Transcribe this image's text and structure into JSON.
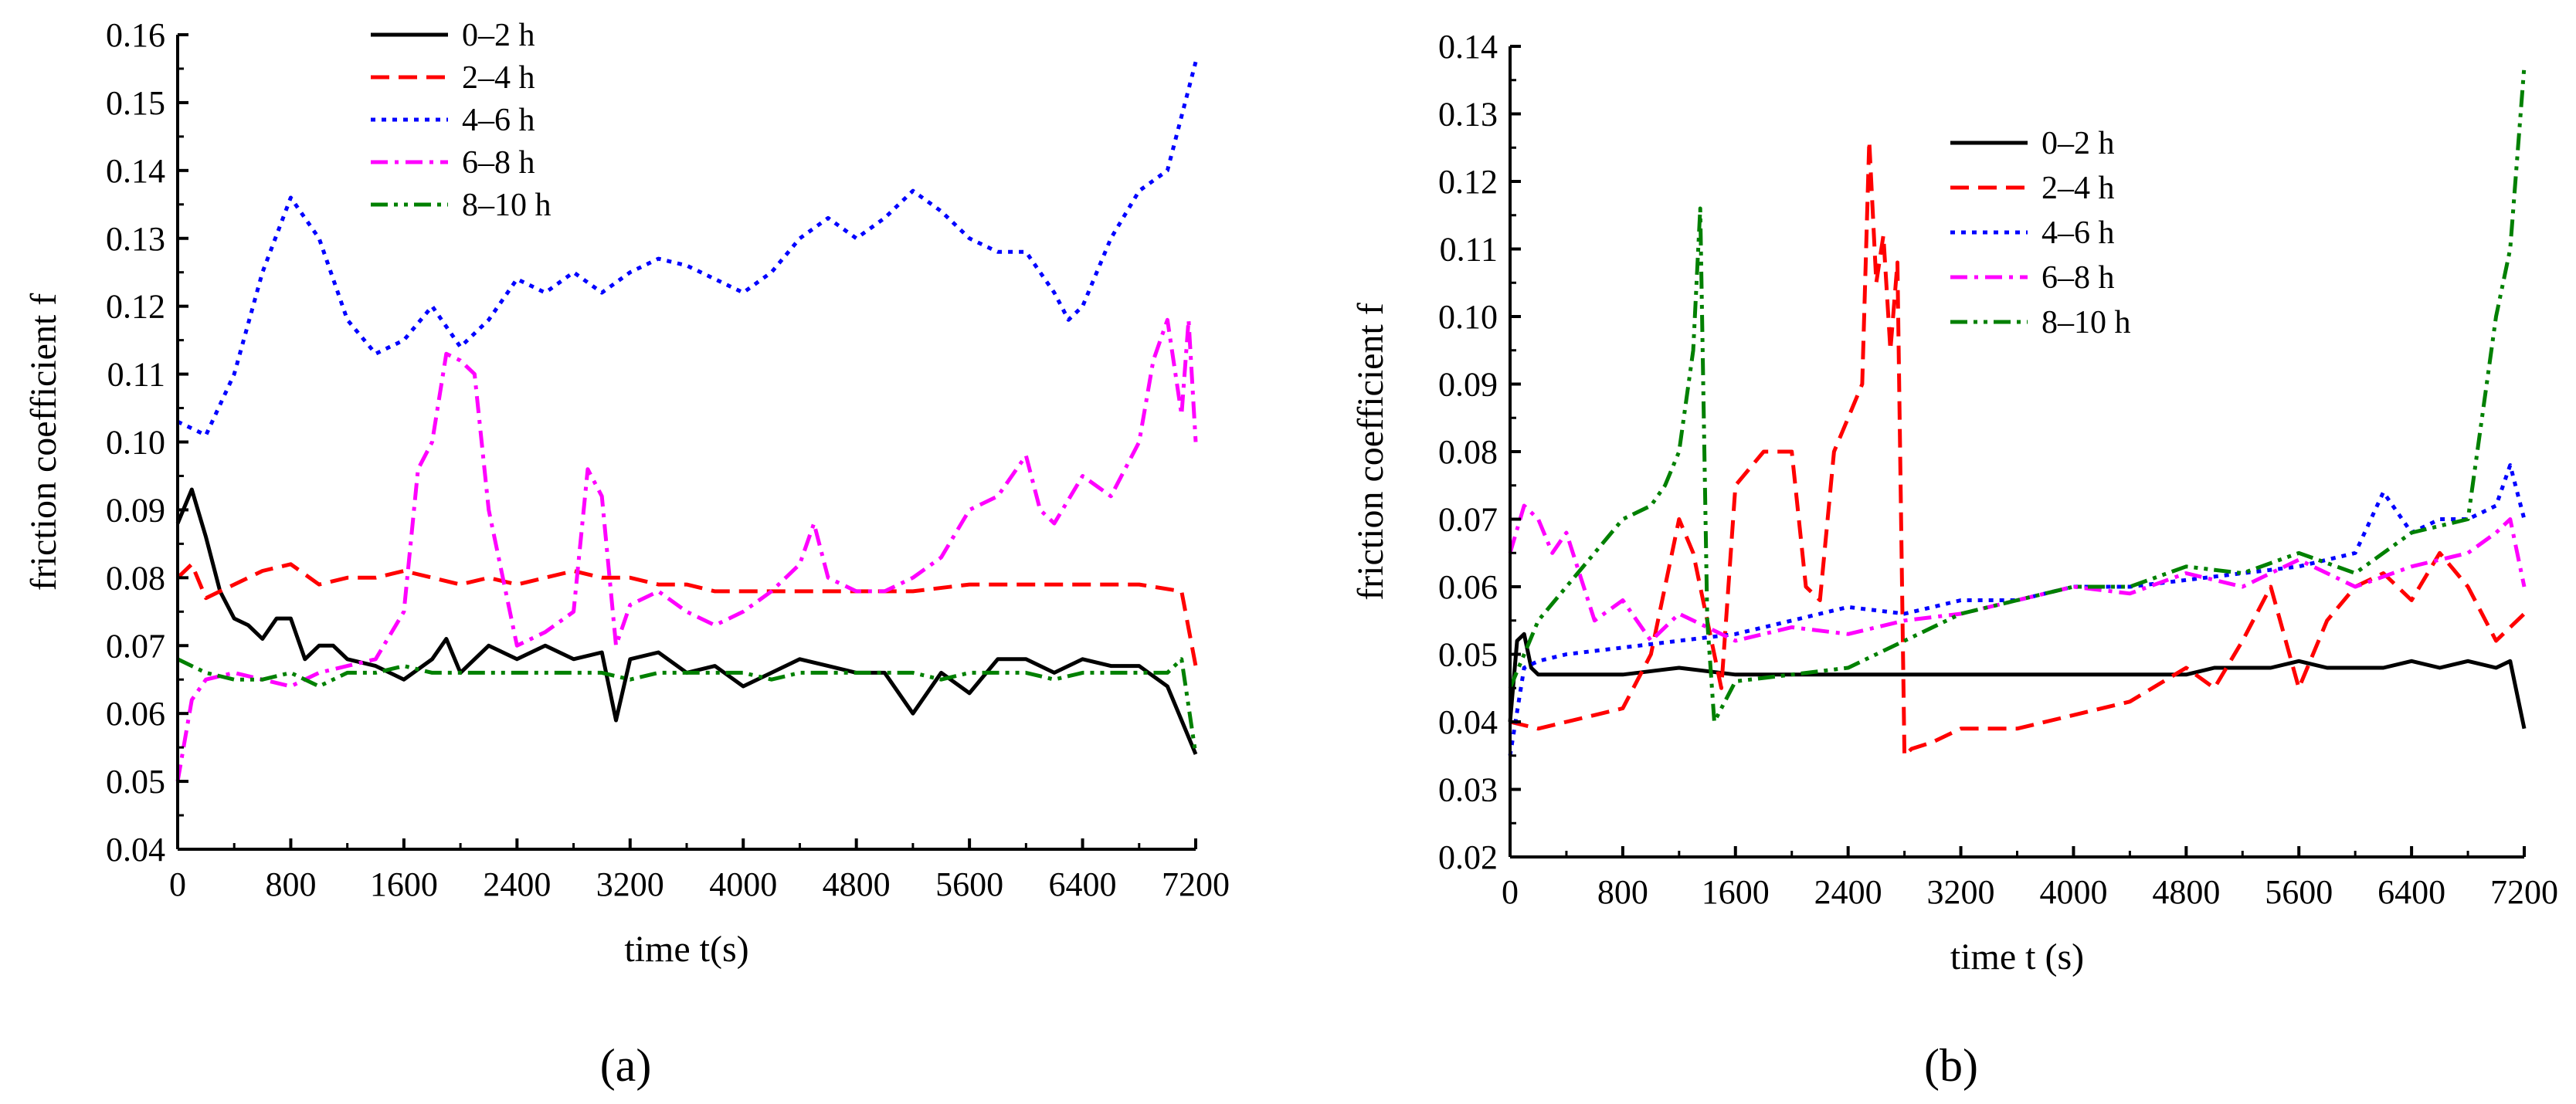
{
  "panel_labels": [
    "(a)",
    "(b)"
  ],
  "chart_data": [
    {
      "type": "line",
      "panel": "(a)",
      "title": "",
      "xlabel": "time t(s)",
      "ylabel": "friction coefficient f",
      "xlim": [
        0,
        7200
      ],
      "ylim": [
        0.04,
        0.16
      ],
      "xticks": [
        0,
        800,
        1600,
        2400,
        3200,
        4000,
        4800,
        5600,
        6400,
        7200
      ],
      "yticks": [
        0.04,
        0.05,
        0.06,
        0.07,
        0.08,
        0.09,
        0.1,
        0.11,
        0.12,
        0.13,
        0.14,
        0.15,
        0.16
      ],
      "ytick_labels": [
        "0.04",
        "0.05",
        "0.06",
        "0.07",
        "0.08",
        "0.09",
        "0.10",
        "0.11",
        "0.12",
        "0.13",
        "0.14",
        "0.15",
        "0.16"
      ],
      "legend_position": "top-left",
      "series": [
        {
          "name": "0–2 h",
          "color": "#000000",
          "dash": "solid",
          "x": [
            0,
            100,
            200,
            300,
            400,
            500,
            600,
            700,
            800,
            900,
            1000,
            1100,
            1200,
            1400,
            1600,
            1800,
            1900,
            2000,
            2200,
            2400,
            2600,
            2800,
            3000,
            3100,
            3200,
            3400,
            3600,
            3800,
            4000,
            4200,
            4400,
            4600,
            4800,
            5000,
            5200,
            5400,
            5600,
            5800,
            6000,
            6200,
            6400,
            6600,
            6800,
            7000,
            7200
          ],
          "values": [
            0.088,
            0.093,
            0.086,
            0.078,
            0.074,
            0.073,
            0.071,
            0.074,
            0.074,
            0.068,
            0.07,
            0.07,
            0.068,
            0.067,
            0.065,
            0.068,
            0.071,
            0.066,
            0.07,
            0.068,
            0.07,
            0.068,
            0.069,
            0.059,
            0.068,
            0.069,
            0.066,
            0.067,
            0.064,
            0.066,
            0.068,
            0.067,
            0.066,
            0.066,
            0.06,
            0.066,
            0.063,
            0.068,
            0.068,
            0.066,
            0.068,
            0.067,
            0.067,
            0.064,
            0.054
          ]
        },
        {
          "name": "2–4 h",
          "color": "#ff0000",
          "dash": "dashed",
          "x": [
            0,
            100,
            200,
            400,
            600,
            800,
            1000,
            1200,
            1400,
            1600,
            1800,
            2000,
            2200,
            2400,
            2600,
            2800,
            3000,
            3200,
            3400,
            3600,
            3800,
            4000,
            4400,
            4800,
            5200,
            5600,
            6000,
            6400,
            6800,
            7100,
            7200
          ],
          "values": [
            0.08,
            0.082,
            0.077,
            0.079,
            0.081,
            0.082,
            0.079,
            0.08,
            0.08,
            0.081,
            0.08,
            0.079,
            0.08,
            0.079,
            0.08,
            0.081,
            0.08,
            0.08,
            0.079,
            0.079,
            0.078,
            0.078,
            0.078,
            0.078,
            0.078,
            0.079,
            0.079,
            0.079,
            0.079,
            0.078,
            0.067
          ]
        },
        {
          "name": "4–6 h",
          "color": "#0000ff",
          "dash": "dotted",
          "x": [
            0,
            200,
            400,
            600,
            800,
            1000,
            1200,
            1400,
            1600,
            1800,
            2000,
            2200,
            2400,
            2600,
            2800,
            3000,
            3200,
            3400,
            3600,
            3800,
            4000,
            4200,
            4400,
            4600,
            4800,
            5000,
            5200,
            5400,
            5600,
            5800,
            6000,
            6200,
            6300,
            6400,
            6600,
            6800,
            7000,
            7200
          ],
          "values": [
            0.103,
            0.101,
            0.11,
            0.125,
            0.136,
            0.13,
            0.118,
            0.113,
            0.115,
            0.12,
            0.114,
            0.118,
            0.124,
            0.122,
            0.125,
            0.122,
            0.125,
            0.127,
            0.126,
            0.124,
            0.122,
            0.125,
            0.13,
            0.133,
            0.13,
            0.133,
            0.137,
            0.134,
            0.13,
            0.128,
            0.128,
            0.122,
            0.118,
            0.12,
            0.13,
            0.137,
            0.14,
            0.156
          ]
        },
        {
          "name": "6–8 h",
          "color": "#ff00ff",
          "dash": "dashdot",
          "x": [
            0,
            100,
            200,
            400,
            600,
            800,
            1000,
            1200,
            1400,
            1600,
            1700,
            1800,
            1900,
            2000,
            2100,
            2200,
            2400,
            2600,
            2800,
            2900,
            3000,
            3100,
            3200,
            3400,
            3600,
            3800,
            4000,
            4200,
            4400,
            4500,
            4600,
            4800,
            5000,
            5200,
            5400,
            5600,
            5800,
            6000,
            6100,
            6200,
            6400,
            6600,
            6800,
            6900,
            7000,
            7100,
            7150,
            7200
          ],
          "values": [
            0.05,
            0.062,
            0.065,
            0.066,
            0.065,
            0.064,
            0.066,
            0.067,
            0.068,
            0.075,
            0.096,
            0.1,
            0.113,
            0.112,
            0.11,
            0.09,
            0.07,
            0.072,
            0.075,
            0.096,
            0.092,
            0.07,
            0.076,
            0.078,
            0.075,
            0.073,
            0.075,
            0.078,
            0.082,
            0.088,
            0.08,
            0.078,
            0.078,
            0.08,
            0.083,
            0.09,
            0.092,
            0.098,
            0.09,
            0.088,
            0.095,
            0.092,
            0.1,
            0.112,
            0.118,
            0.104,
            0.118,
            0.1
          ]
        },
        {
          "name": "8–10 h",
          "color": "#008000",
          "dash": "dashdotdot",
          "x": [
            0,
            200,
            400,
            600,
            800,
            1000,
            1200,
            1400,
            1600,
            1800,
            2000,
            2200,
            2400,
            2600,
            2800,
            3000,
            3200,
            3400,
            3600,
            3800,
            4000,
            4200,
            4400,
            4600,
            4800,
            5000,
            5200,
            5400,
            5600,
            5800,
            6000,
            6200,
            6400,
            6600,
            6800,
            7000,
            7100,
            7200
          ],
          "values": [
            0.068,
            0.066,
            0.065,
            0.065,
            0.066,
            0.064,
            0.066,
            0.066,
            0.067,
            0.066,
            0.066,
            0.066,
            0.066,
            0.066,
            0.066,
            0.066,
            0.065,
            0.066,
            0.066,
            0.066,
            0.066,
            0.065,
            0.066,
            0.066,
            0.066,
            0.066,
            0.066,
            0.065,
            0.066,
            0.066,
            0.066,
            0.065,
            0.066,
            0.066,
            0.066,
            0.066,
            0.068,
            0.054
          ]
        }
      ]
    },
    {
      "type": "line",
      "panel": "(b)",
      "title": "",
      "xlabel": "time t (s)",
      "ylabel": "friction coefficient f",
      "xlim": [
        0,
        7200
      ],
      "ylim": [
        0.02,
        0.14
      ],
      "xticks": [
        0,
        800,
        1600,
        2400,
        3200,
        4000,
        4800,
        5600,
        6400,
        7200
      ],
      "yticks": [
        0.02,
        0.03,
        0.04,
        0.05,
        0.06,
        0.07,
        0.08,
        0.09,
        0.1,
        0.11,
        0.12,
        0.13,
        0.14
      ],
      "ytick_labels": [
        "0.02",
        "0.03",
        "0.04",
        "0.05",
        "0.06",
        "0.07",
        "0.08",
        "0.09",
        "0.10",
        "0.11",
        "0.12",
        "0.13",
        "0.14"
      ],
      "legend_position": "top-center",
      "series": [
        {
          "name": "0–2 h",
          "color": "#000000",
          "dash": "solid",
          "x": [
            0,
            50,
            100,
            150,
            200,
            400,
            800,
            1200,
            1600,
            2000,
            2400,
            2800,
            3200,
            3600,
            4000,
            4400,
            4800,
            5000,
            5200,
            5400,
            5600,
            5800,
            6000,
            6200,
            6400,
            6600,
            6800,
            7000,
            7100,
            7200
          ],
          "values": [
            0.04,
            0.052,
            0.053,
            0.048,
            0.047,
            0.047,
            0.047,
            0.048,
            0.047,
            0.047,
            0.047,
            0.047,
            0.047,
            0.047,
            0.047,
            0.047,
            0.047,
            0.048,
            0.048,
            0.048,
            0.049,
            0.048,
            0.048,
            0.048,
            0.049,
            0.048,
            0.049,
            0.048,
            0.049,
            0.039
          ]
        },
        {
          "name": "2–4 h",
          "color": "#ff0000",
          "dash": "dashed",
          "x": [
            0,
            200,
            400,
            600,
            800,
            1000,
            1100,
            1200,
            1300,
            1400,
            1500,
            1600,
            1800,
            2000,
            2100,
            2200,
            2300,
            2400,
            2500,
            2550,
            2600,
            2650,
            2700,
            2750,
            2800,
            2850,
            3000,
            3200,
            3600,
            4000,
            4400,
            4800,
            5000,
            5200,
            5400,
            5600,
            5800,
            6000,
            6200,
            6400,
            6600,
            6800,
            7000,
            7200
          ],
          "values": [
            0.04,
            0.039,
            0.04,
            0.041,
            0.042,
            0.05,
            0.06,
            0.07,
            0.065,
            0.055,
            0.045,
            0.075,
            0.08,
            0.08,
            0.06,
            0.058,
            0.08,
            0.085,
            0.09,
            0.126,
            0.105,
            0.112,
            0.095,
            0.108,
            0.035,
            0.036,
            0.037,
            0.039,
            0.039,
            0.041,
            0.043,
            0.048,
            0.045,
            0.052,
            0.06,
            0.045,
            0.055,
            0.06,
            0.062,
            0.058,
            0.065,
            0.06,
            0.052,
            0.056
          ]
        },
        {
          "name": "4–6 h",
          "color": "#0000ff",
          "dash": "dotted",
          "x": [
            0,
            100,
            200,
            400,
            800,
            1200,
            1600,
            2000,
            2400,
            2800,
            3200,
            3600,
            4000,
            4400,
            4800,
            5200,
            5600,
            6000,
            6200,
            6400,
            6600,
            6800,
            7000,
            7100,
            7200
          ],
          "values": [
            0.035,
            0.048,
            0.049,
            0.05,
            0.051,
            0.052,
            0.053,
            0.055,
            0.057,
            0.056,
            0.058,
            0.058,
            0.06,
            0.06,
            0.061,
            0.062,
            0.063,
            0.065,
            0.074,
            0.068,
            0.07,
            0.07,
            0.072,
            0.078,
            0.07
          ]
        },
        {
          "name": "6–8 h",
          "color": "#ff00ff",
          "dash": "dashdot",
          "x": [
            0,
            100,
            200,
            300,
            400,
            600,
            800,
            1000,
            1200,
            1400,
            1600,
            2000,
            2400,
            2800,
            3200,
            3600,
            4000,
            4400,
            4800,
            5200,
            5600,
            6000,
            6400,
            6800,
            7000,
            7100,
            7200
          ],
          "values": [
            0.065,
            0.072,
            0.07,
            0.065,
            0.068,
            0.055,
            0.058,
            0.052,
            0.056,
            0.054,
            0.052,
            0.054,
            0.053,
            0.055,
            0.056,
            0.058,
            0.06,
            0.059,
            0.062,
            0.06,
            0.064,
            0.06,
            0.063,
            0.065,
            0.068,
            0.07,
            0.06
          ]
        },
        {
          "name": "8–10 h",
          "color": "#008000",
          "dash": "dashdotdot",
          "x": [
            0,
            200,
            400,
            600,
            800,
            1000,
            1100,
            1200,
            1300,
            1350,
            1400,
            1450,
            1600,
            2000,
            2400,
            2800,
            3200,
            3600,
            4000,
            4400,
            4800,
            5200,
            5600,
            6000,
            6400,
            6800,
            6900,
            7000,
            7100,
            7200
          ],
          "values": [
            0.045,
            0.055,
            0.06,
            0.065,
            0.07,
            0.072,
            0.075,
            0.08,
            0.095,
            0.116,
            0.055,
            0.04,
            0.046,
            0.047,
            0.048,
            0.052,
            0.056,
            0.058,
            0.06,
            0.06,
            0.063,
            0.062,
            0.065,
            0.062,
            0.068,
            0.07,
            0.085,
            0.1,
            0.11,
            0.137
          ]
        }
      ]
    }
  ]
}
